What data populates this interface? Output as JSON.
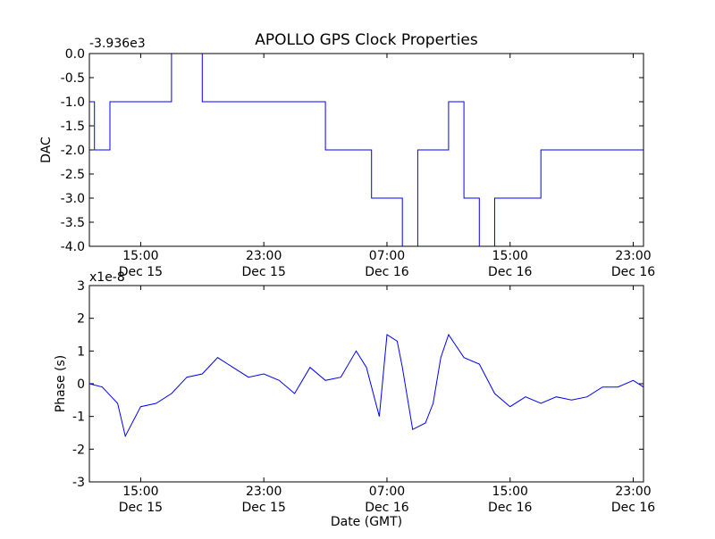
{
  "figure": {
    "title": "APOLLO GPS Clock Properties"
  },
  "chart_data": [
    {
      "type": "line",
      "ylabel": "DAC",
      "offset_text": "-3.936e3",
      "ylim": [
        -4.0,
        0.0
      ],
      "yticks": [
        "0.0",
        "-0.5",
        "-1.0",
        "-1.5",
        "-2.0",
        "-2.5",
        "-3.0",
        "-3.5",
        "-4.0"
      ],
      "xticks": [
        {
          "time": "15:00",
          "date": "Dec 15"
        },
        {
          "time": "23:00",
          "date": "Dec 15"
        },
        {
          "time": "07:00",
          "date": "Dec 16"
        },
        {
          "time": "15:00",
          "date": "Dec 16"
        },
        {
          "time": "23:00",
          "date": "Dec 16"
        }
      ],
      "grid": false,
      "series": [
        {
          "color": "#0000ff",
          "x": [
            "Dec 15 11:40",
            "Dec 15 12:00",
            "Dec 15 13:00",
            "Dec 15 14:00",
            "Dec 15 17:00",
            "Dec 15 19:00",
            "Dec 15 20:00",
            "Dec 15 22:00",
            "Dec 16 00:00",
            "Dec 16 01:00",
            "Dec 16 03:00",
            "Dec 16 05:00",
            "Dec 16 06:00",
            "Dec 16 07:00",
            "Dec 16 08:00",
            "Dec 16 09:00",
            "Dec 16 10:00",
            "Dec 16 11:00",
            "Dec 16 12:00",
            "Dec 16 13:00",
            "Dec 16 14:00",
            "Dec 16 15:00",
            "Dec 16 17:00",
            "Dec 16 19:00",
            "Dec 16 21:00",
            "Dec 16 23:00",
            "Dec 16 23:40"
          ],
          "values": [
            -1.0,
            -2.0,
            -1.0,
            -1.0,
            0.0,
            -1.0,
            -1.0,
            -1.0,
            -1.0,
            -1.0,
            -2.0,
            -2.0,
            -3.0,
            -3.0,
            -4.0,
            -2.0,
            -2.0,
            -1.0,
            -3.0,
            -4.0,
            -3.0,
            -3.0,
            -2.0,
            -2.0,
            -2.0,
            -2.0,
            -3.0
          ]
        }
      ]
    },
    {
      "type": "line",
      "ylabel": "Phase (s)",
      "xlabel": "Date (GMT)",
      "offset_text": "x1e-8",
      "ylim": [
        -3,
        3
      ],
      "yticks": [
        "3",
        "2",
        "1",
        "0",
        "-1",
        "-2",
        "-3"
      ],
      "xticks": [
        {
          "time": "15:00",
          "date": "Dec 15"
        },
        {
          "time": "23:00",
          "date": "Dec 15"
        },
        {
          "time": "07:00",
          "date": "Dec 16"
        },
        {
          "time": "15:00",
          "date": "Dec 16"
        },
        {
          "time": "23:00",
          "date": "Dec 16"
        }
      ],
      "grid": false,
      "series": [
        {
          "color": "#0000ff",
          "x": [
            "Dec 15 11:40",
            "Dec 15 12:30",
            "Dec 15 13:30",
            "Dec 15 14:00",
            "Dec 15 15:00",
            "Dec 15 16:00",
            "Dec 15 17:00",
            "Dec 15 18:00",
            "Dec 15 19:00",
            "Dec 15 20:00",
            "Dec 15 21:00",
            "Dec 15 22:00",
            "Dec 15 23:00",
            "Dec 16 00:00",
            "Dec 16 01:00",
            "Dec 16 02:00",
            "Dec 16 03:00",
            "Dec 16 04:00",
            "Dec 16 05:00",
            "Dec 16 05:40",
            "Dec 16 06:30",
            "Dec 16 07:00",
            "Dec 16 07:40",
            "Dec 16 08:00",
            "Dec 16 08:40",
            "Dec 16 09:30",
            "Dec 16 10:00",
            "Dec 16 10:30",
            "Dec 16 11:00",
            "Dec 16 12:00",
            "Dec 16 13:00",
            "Dec 16 14:00",
            "Dec 16 15:00",
            "Dec 16 16:00",
            "Dec 16 17:00",
            "Dec 16 18:00",
            "Dec 16 19:00",
            "Dec 16 20:00",
            "Dec 16 21:00",
            "Dec 16 22:00",
            "Dec 16 23:00",
            "Dec 16 23:40"
          ],
          "values": [
            0.0,
            -0.1,
            -0.6,
            -1.6,
            -0.7,
            -0.6,
            -0.3,
            0.2,
            0.3,
            0.8,
            0.5,
            0.2,
            0.3,
            0.1,
            -0.3,
            0.5,
            0.1,
            0.2,
            1.0,
            0.5,
            -1.0,
            1.5,
            1.3,
            0.5,
            -1.4,
            -1.2,
            -0.6,
            0.8,
            1.5,
            0.8,
            0.6,
            -0.3,
            -0.7,
            -0.4,
            -0.6,
            -0.4,
            -0.5,
            -0.4,
            -0.1,
            -0.1,
            0.1,
            -0.1
          ]
        }
      ]
    }
  ]
}
